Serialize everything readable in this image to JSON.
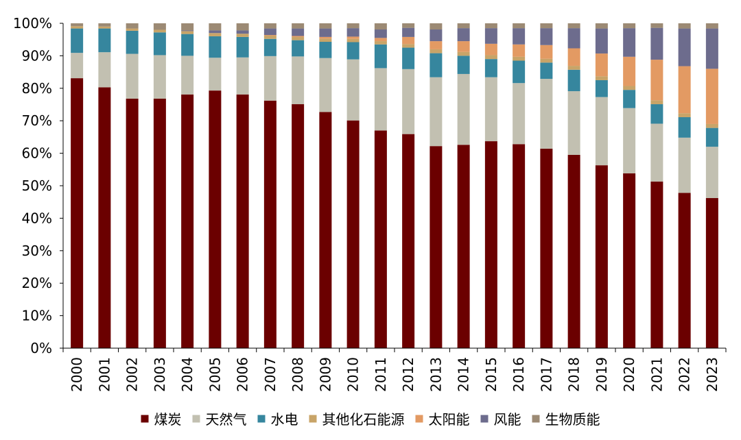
{
  "chart_data": {
    "type": "bar",
    "stacked": true,
    "title": "",
    "xlabel": "",
    "ylabel": "",
    "ylim": [
      0,
      100
    ],
    "y_ticks": [
      "0%",
      "10%",
      "20%",
      "30%",
      "40%",
      "50%",
      "60%",
      "70%",
      "80%",
      "90%",
      "100%"
    ],
    "grid": false,
    "legend_position": "bottom",
    "categories": [
      "2000",
      "2001",
      "2002",
      "2003",
      "2004",
      "2005",
      "2006",
      "2007",
      "2008",
      "2009",
      "2010",
      "2011",
      "2012",
      "2013",
      "2014",
      "2015",
      "2016",
      "2017",
      "2018",
      "2019",
      "2020",
      "2021",
      "2022",
      "2023"
    ],
    "series": [
      {
        "name": "煤炭",
        "color": "#6b0000",
        "values": [
          83.1,
          80.3,
          76.8,
          76.8,
          78.1,
          79.3,
          78.1,
          76.2,
          75.1,
          72.7,
          70.1,
          67.0,
          65.9,
          62.2,
          62.6,
          63.7,
          62.8,
          61.4,
          59.5,
          56.3,
          53.8,
          51.3,
          47.8,
          46.2
        ]
      },
      {
        "name": "天然气",
        "color": "#c2c0b1",
        "values": [
          7.8,
          10.8,
          13.8,
          13.4,
          11.9,
          10.1,
          11.4,
          13.7,
          14.7,
          16.6,
          18.8,
          19.2,
          20.0,
          21.2,
          21.8,
          19.7,
          18.8,
          21.5,
          19.6,
          21.0,
          20.1,
          17.8,
          17.0,
          15.8
        ]
      },
      {
        "name": "水电",
        "color": "#36869e",
        "values": [
          7.5,
          7.3,
          7.1,
          7.0,
          6.7,
          6.6,
          6.3,
          5.3,
          5.0,
          5.0,
          5.3,
          7.3,
          6.6,
          7.4,
          5.6,
          5.6,
          6.9,
          5.0,
          6.6,
          5.2,
          5.6,
          6.0,
          6.3,
          5.8
        ]
      },
      {
        "name": "其他化石能源",
        "color": "#c8a468",
        "values": [
          0.7,
          0.6,
          0.7,
          0.8,
          0.9,
          1.0,
          1.0,
          1.0,
          1.0,
          1.0,
          1.0,
          1.0,
          1.1,
          1.2,
          1.2,
          1.2,
          1.2,
          1.2,
          1.2,
          1.2,
          1.2,
          1.2,
          1.2,
          1.2
        ]
      },
      {
        "name": "太阳能",
        "color": "#e39a63",
        "values": [
          0.0,
          0.0,
          0.0,
          0.0,
          0.0,
          0.0,
          0.0,
          0.2,
          0.3,
          0.5,
          0.7,
          1.0,
          2.2,
          2.5,
          3.3,
          3.5,
          3.8,
          4.2,
          5.4,
          7.0,
          9.0,
          12.5,
          14.5,
          17.0
        ]
      },
      {
        "name": "风能",
        "color": "#6d6c8d",
        "values": [
          0.0,
          0.0,
          0.0,
          0.0,
          0.2,
          0.8,
          1.0,
          2.0,
          2.3,
          2.6,
          2.6,
          2.6,
          2.8,
          3.6,
          4.0,
          4.8,
          5.0,
          5.2,
          6.2,
          7.7,
          8.8,
          9.8,
          11.6,
          12.4
        ]
      },
      {
        "name": "生物质能",
        "color": "#9c8a74",
        "values": [
          0.9,
          1.0,
          1.6,
          2.0,
          2.2,
          2.2,
          2.2,
          1.6,
          1.6,
          1.6,
          1.5,
          1.9,
          1.4,
          1.9,
          1.5,
          1.5,
          1.5,
          1.5,
          1.5,
          1.6,
          1.5,
          1.4,
          1.6,
          1.6
        ]
      }
    ]
  }
}
